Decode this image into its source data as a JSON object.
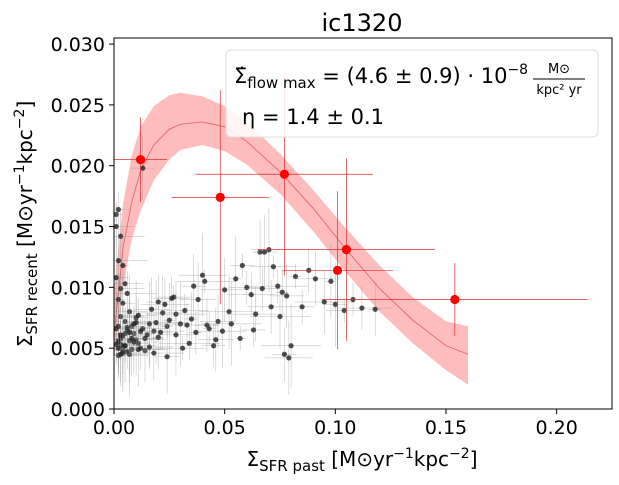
{
  "chart_data": {
    "type": "scatter",
    "title": "ic1320",
    "xlabel": "Σ_SFR past  [M⊙yr⁻¹kpc⁻²]",
    "ylabel": "Σ_SFR recent  [M⊙yr⁻¹kpc⁻²]",
    "xlim": [
      0.0,
      0.225
    ],
    "ylim": [
      0.0,
      0.0305
    ],
    "x_ticks": [
      0.0,
      0.05,
      0.1,
      0.15,
      0.2
    ],
    "x_tick_labels": [
      "0.00",
      "0.05",
      "0.10",
      "0.15",
      "0.20"
    ],
    "y_ticks": [
      0.0,
      0.005,
      0.01,
      0.015,
      0.02,
      0.025,
      0.03
    ],
    "y_tick_labels": [
      "0.000",
      "0.005",
      "0.010",
      "0.015",
      "0.020",
      "0.025",
      "0.030"
    ],
    "annotation": {
      "line1_prefix": "Σ̇",
      "line1_sub": "flow max",
      "line1_mid": " = (4.6 ± 0.9) · 10",
      "line1_exp": "−8",
      "frac_num": "M⊙",
      "frac_den": "kpc² yr",
      "line2": "η = 1.4 ± 0.1"
    },
    "model_band": {
      "color": "#ffbcbc",
      "x": [
        0.0,
        0.004,
        0.008,
        0.012,
        0.018,
        0.025,
        0.03,
        0.04,
        0.05,
        0.06,
        0.075,
        0.09,
        0.105,
        0.12,
        0.135,
        0.15,
        0.16
      ],
      "upper": [
        0.0095,
        0.0168,
        0.0208,
        0.0232,
        0.0249,
        0.0258,
        0.026,
        0.0257,
        0.0249,
        0.0236,
        0.021,
        0.018,
        0.0148,
        0.0118,
        0.0092,
        0.0072,
        0.0068
      ],
      "lower": [
        0.004,
        0.01,
        0.0139,
        0.0163,
        0.0188,
        0.0205,
        0.0213,
        0.0217,
        0.0212,
        0.0201,
        0.0177,
        0.0146,
        0.0112,
        0.008,
        0.0054,
        0.0032,
        0.002
      ],
      "center": [
        0.006,
        0.0132,
        0.017,
        0.0196,
        0.0217,
        0.023,
        0.0234,
        0.0236,
        0.0232,
        0.022,
        0.0195,
        0.0165,
        0.0131,
        0.0099,
        0.0073,
        0.0052,
        0.0045
      ]
    },
    "binned_points": {
      "color": "#ff0000",
      "x": [
        0.012,
        0.048,
        0.077,
        0.101,
        0.105,
        0.154
      ],
      "y": [
        0.0205,
        0.0174,
        0.0193,
        0.0114,
        0.0131,
        0.009
      ],
      "xerr": [
        0.012,
        0.022,
        0.04,
        0.025,
        0.04,
        0.06
      ],
      "yerr": [
        0.0035,
        0.0088,
        0.0083,
        0.0065,
        0.0075,
        0.003
      ]
    },
    "pixel_points": {
      "color": "#222222",
      "x": [
        0.001,
        0.002,
        0.001,
        0.003,
        0.002,
        0.004,
        0.001,
        0.005,
        0.003,
        0.006,
        0.002,
        0.004,
        0.007,
        0.003,
        0.005,
        0.008,
        0.006,
        0.009,
        0.004,
        0.01,
        0.007,
        0.011,
        0.005,
        0.012,
        0.008,
        0.014,
        0.01,
        0.016,
        0.013,
        0.018,
        0.015,
        0.02,
        0.017,
        0.022,
        0.019,
        0.024,
        0.021,
        0.026,
        0.023,
        0.028,
        0.025,
        0.03,
        0.027,
        0.032,
        0.033,
        0.035,
        0.036,
        0.038,
        0.04,
        0.041,
        0.043,
        0.045,
        0.047,
        0.05,
        0.052,
        0.055,
        0.058,
        0.06,
        0.062,
        0.064,
        0.066,
        0.068,
        0.07,
        0.072,
        0.074,
        0.076,
        0.077,
        0.078,
        0.079,
        0.08,
        0.082,
        0.085,
        0.088,
        0.091,
        0.095,
        0.098,
        0.1,
        0.104,
        0.108,
        0.112,
        0.118,
        0.002,
        0.003,
        0.004,
        0.002,
        0.006,
        0.003,
        0.005,
        0.009,
        0.011,
        0.007,
        0.012,
        0.014,
        0.016,
        0.018,
        0.02,
        0.024,
        0.028,
        0.031,
        0.034,
        0.037,
        0.042,
        0.046,
        0.049,
        0.053,
        0.057,
        0.063,
        0.067,
        0.071,
        0.075,
        0.002,
        0.004,
        0.003,
        0.006,
        0.008,
        0.01,
        0.013,
        0.001,
        0.002,
        0.003,
        0.001,
        0.004,
        0.002,
        0.003,
        0.005,
        0.007,
        0.009,
        0.011
      ],
      "y": [
        0.016,
        0.0164,
        0.015,
        0.0142,
        0.0122,
        0.0118,
        0.0108,
        0.0103,
        0.0099,
        0.0095,
        0.009,
        0.0087,
        0.008,
        0.0076,
        0.0072,
        0.0068,
        0.0065,
        0.0062,
        0.006,
        0.0057,
        0.0056,
        0.0054,
        0.0052,
        0.005,
        0.0049,
        0.0048,
        0.0075,
        0.007,
        0.0066,
        0.0064,
        0.0061,
        0.0088,
        0.0082,
        0.0079,
        0.0071,
        0.0068,
        0.0063,
        0.0091,
        0.0086,
        0.0078,
        0.0073,
        0.007,
        0.0092,
        0.0081,
        0.0069,
        0.0074,
        0.0101,
        0.009,
        0.011,
        0.0105,
        0.0066,
        0.0052,
        0.0072,
        0.0098,
        0.008,
        0.0107,
        0.0118,
        0.01,
        0.0094,
        0.0078,
        0.0129,
        0.0129,
        0.0131,
        0.0117,
        0.0101,
        0.0096,
        0.0045,
        0.0093,
        0.0042,
        0.0052,
        0.0109,
        0.0084,
        0.0114,
        0.0107,
        0.0088,
        0.0105,
        0.0086,
        0.0081,
        0.009,
        0.0083,
        0.0082,
        0.0056,
        0.0053,
        0.0048,
        0.0044,
        0.0047,
        0.0058,
        0.0062,
        0.0055,
        0.0049,
        0.0045,
        0.0064,
        0.0058,
        0.0051,
        0.0046,
        0.0059,
        0.0043,
        0.0061,
        0.005,
        0.0054,
        0.0063,
        0.0069,
        0.0057,
        0.0064,
        0.007,
        0.0058,
        0.0065,
        0.0099,
        0.0084,
        0.0076,
        0.0055,
        0.0052,
        0.006,
        0.0067,
        0.0058,
        0.0071,
        0.0198,
        0.0066,
        0.0068,
        0.0061,
        0.0053,
        0.0046,
        0.005,
        0.0045,
        0.0052,
        0.0063,
        0.007,
        0.0077
      ]
    }
  }
}
